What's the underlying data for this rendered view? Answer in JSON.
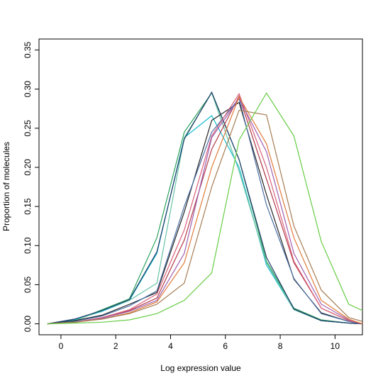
{
  "chart_data": {
    "type": "line",
    "title": "",
    "xlabel": "Log expression value",
    "ylabel": "Proportion of molecules",
    "xlim": [
      -0.8,
      11
    ],
    "ylim": [
      -0.014,
      0.364
    ],
    "x_ticks": [
      0,
      2,
      4,
      6,
      8,
      10
    ],
    "y_ticks": [
      0.0,
      0.05,
      0.1,
      0.15,
      0.2,
      0.25,
      0.3,
      0.35
    ],
    "y_tick_labels": [
      "0.00",
      "0.05",
      "0.10",
      "0.15",
      "0.20",
      "0.25",
      "0.30",
      "0.35"
    ],
    "grid": false,
    "legend": "none",
    "series": [
      {
        "color": "#2ca25f",
        "x": [
          -0.5,
          0.5,
          1.5,
          2.5,
          3.5,
          4.5,
          5.5,
          6.5,
          7.5,
          8.5,
          9.5,
          10.5,
          11
        ],
        "y": [
          0.0,
          0.004,
          0.018,
          0.032,
          0.11,
          0.245,
          0.295,
          0.21,
          0.08,
          0.02,
          0.005,
          0.001,
          0.0
        ]
      },
      {
        "color": "#17becf",
        "x": [
          -0.5,
          0.5,
          1.5,
          2.5,
          3.5,
          4.5,
          5.5,
          6.5,
          7.5,
          8.5,
          9.5,
          10.5,
          11
        ],
        "y": [
          0.0,
          0.005,
          0.016,
          0.03,
          0.09,
          0.238,
          0.266,
          0.2,
          0.075,
          0.018,
          0.004,
          0.001,
          0.0
        ]
      },
      {
        "color": "#66c2a5",
        "x": [
          -0.5,
          0.5,
          1.5,
          2.5,
          3.5,
          4.5,
          5.5,
          6.5,
          7.5,
          8.5,
          9.5,
          10.5,
          11
        ],
        "y": [
          0.0,
          0.004,
          0.017,
          0.03,
          0.052,
          0.238,
          0.295,
          0.195,
          0.078,
          0.018,
          0.004,
          0.001,
          0.0
        ]
      },
      {
        "color": "#1f3a68",
        "x": [
          -0.5,
          0.5,
          1.5,
          2.5,
          3.5,
          4.5,
          5.5,
          6.5,
          7.5,
          8.5,
          9.5,
          10.5,
          11
        ],
        "y": [
          0.0,
          0.006,
          0.017,
          0.031,
          0.092,
          0.236,
          0.296,
          0.21,
          0.085,
          0.019,
          0.004,
          0.001,
          0.0
        ]
      },
      {
        "color": "#222222",
        "x": [
          -0.5,
          0.5,
          1.5,
          2.5,
          3.5,
          4.5,
          5.5,
          6.5,
          7.5,
          8.5,
          9.5,
          10.5,
          11
        ],
        "y": [
          0.0,
          0.004,
          0.011,
          0.025,
          0.04,
          0.143,
          0.26,
          0.283,
          0.165,
          0.057,
          0.014,
          0.003,
          0.0
        ]
      },
      {
        "color": "#4a6fa5",
        "x": [
          -0.5,
          0.5,
          1.5,
          2.5,
          3.5,
          4.5,
          5.5,
          6.5,
          7.5,
          8.5,
          9.5,
          10.5,
          11
        ],
        "y": [
          0.0,
          0.003,
          0.01,
          0.023,
          0.042,
          0.15,
          0.245,
          0.288,
          0.152,
          0.058,
          0.013,
          0.003,
          0.0
        ]
      },
      {
        "color": "#b23a48",
        "x": [
          -0.5,
          0.5,
          1.5,
          2.5,
          3.5,
          4.5,
          5.5,
          6.5,
          7.5,
          8.5,
          9.5,
          10.5,
          11
        ],
        "y": [
          0.0,
          0.002,
          0.007,
          0.017,
          0.033,
          0.107,
          0.223,
          0.291,
          0.185,
          0.078,
          0.02,
          0.004,
          0.0
        ]
      },
      {
        "color": "#d95f7a",
        "x": [
          -0.5,
          0.5,
          1.5,
          2.5,
          3.5,
          4.5,
          5.5,
          6.5,
          7.5,
          8.5,
          9.5,
          10.5,
          11
        ],
        "y": [
          0.0,
          0.002,
          0.008,
          0.018,
          0.038,
          0.12,
          0.24,
          0.294,
          0.2,
          0.08,
          0.02,
          0.004,
          0.0
        ]
      },
      {
        "color": "#9e5fb0",
        "x": [
          -0.5,
          0.5,
          1.5,
          2.5,
          3.5,
          4.5,
          5.5,
          6.5,
          7.5,
          8.5,
          9.5,
          10.5,
          11
        ],
        "y": [
          0.0,
          0.002,
          0.007,
          0.016,
          0.03,
          0.09,
          0.238,
          0.288,
          0.22,
          0.09,
          0.025,
          0.005,
          0.0
        ]
      },
      {
        "color": "#e07b39",
        "x": [
          -0.5,
          0.5,
          1.5,
          2.5,
          3.5,
          4.5,
          5.5,
          6.5,
          7.5,
          8.5,
          9.5,
          10.5,
          11
        ],
        "y": [
          0.0,
          0.002,
          0.006,
          0.014,
          0.028,
          0.078,
          0.2,
          0.29,
          0.23,
          0.11,
          0.03,
          0.006,
          0.0
        ]
      },
      {
        "color": "#a67c52",
        "x": [
          -0.5,
          0.5,
          1.5,
          2.5,
          3.5,
          4.5,
          5.5,
          6.5,
          7.5,
          8.5,
          9.5,
          10.5,
          11
        ],
        "y": [
          0.0,
          0.002,
          0.006,
          0.013,
          0.025,
          0.052,
          0.175,
          0.273,
          0.267,
          0.125,
          0.043,
          0.008,
          0.003
        ]
      },
      {
        "color": "#66cc44",
        "x": [
          -0.5,
          0.5,
          1.5,
          2.5,
          3.5,
          4.5,
          5.5,
          6.5,
          7.5,
          8.5,
          9.5,
          10.5,
          11
        ],
        "y": [
          0.0,
          0.001,
          0.002,
          0.005,
          0.013,
          0.03,
          0.065,
          0.235,
          0.295,
          0.24,
          0.105,
          0.025,
          0.017
        ]
      }
    ]
  }
}
